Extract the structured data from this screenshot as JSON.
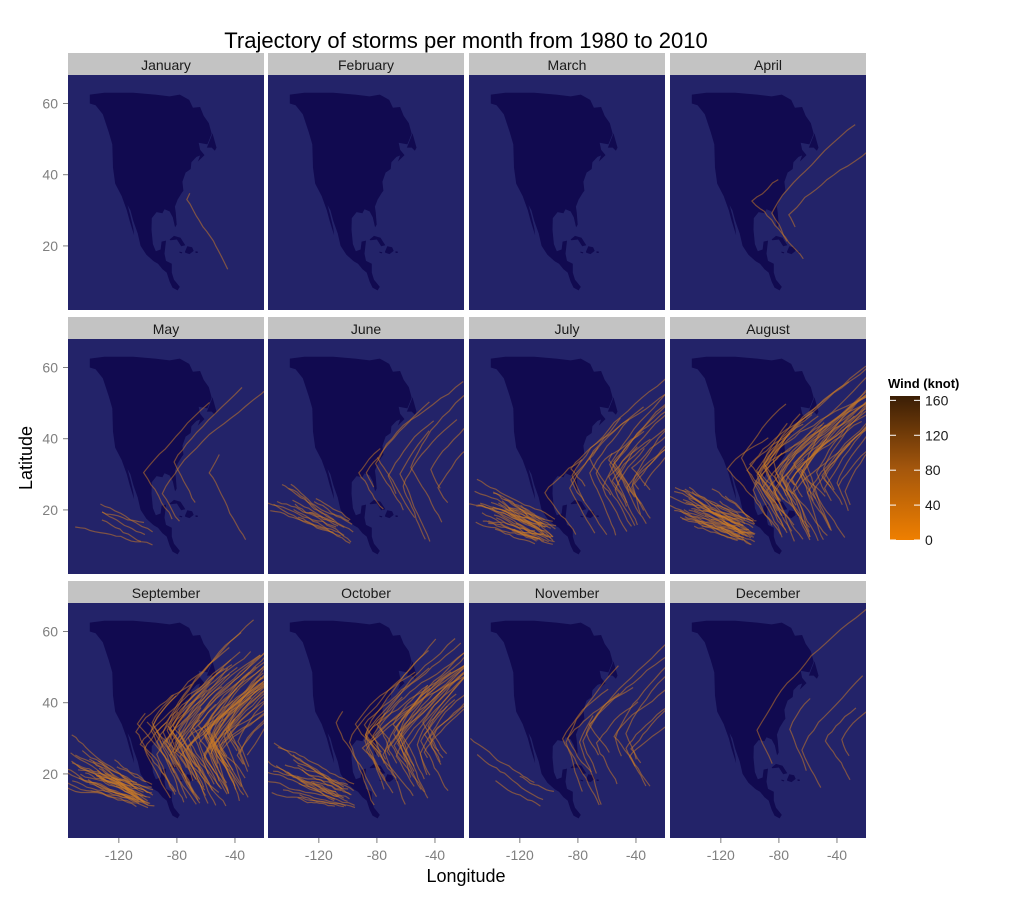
{
  "chart_data": {
    "type": "map-trajectories",
    "title": "Trajectory of storms per month from 1980 to 2010",
    "xlabel": "Longitude",
    "ylabel": "Latitude",
    "x_ticks": [
      -120,
      -80,
      -40
    ],
    "y_ticks": [
      20,
      40,
      60
    ],
    "xlim": [
      -155,
      -20
    ],
    "ylim": [
      2,
      68
    ],
    "colors": {
      "ocean": "#232369",
      "land": "#110a50",
      "strip": "#c3c3c3",
      "track": "#c87a28",
      "wind_high": "#3a1e05",
      "wind_low": "#ef7f00"
    },
    "legend": {
      "title": "Wind (knot)",
      "ticks": [
        160,
        120,
        80,
        40,
        0
      ],
      "range": [
        0,
        165
      ]
    },
    "panels": [
      {
        "month": "January",
        "storm_count": 1,
        "pacific_tracks": 0,
        "atlantic_tracks": 1
      },
      {
        "month": "February",
        "storm_count": 0,
        "pacific_tracks": 0,
        "atlantic_tracks": 0
      },
      {
        "month": "March",
        "storm_count": 0,
        "pacific_tracks": 0,
        "atlantic_tracks": 0
      },
      {
        "month": "April",
        "storm_count": 3,
        "pacific_tracks": 0,
        "atlantic_tracks": 3
      },
      {
        "month": "May",
        "storm_count": 7,
        "pacific_tracks": 5,
        "atlantic_tracks": 4
      },
      {
        "month": "June",
        "storm_count": 22,
        "pacific_tracks": 14,
        "atlantic_tracks": 10
      },
      {
        "month": "July",
        "storm_count": 60,
        "pacific_tracks": 34,
        "atlantic_tracks": 24
      },
      {
        "month": "August",
        "storm_count": 95,
        "pacific_tracks": 40,
        "atlantic_tracks": 50
      },
      {
        "month": "September",
        "storm_count": 110,
        "pacific_tracks": 36,
        "atlantic_tracks": 70
      },
      {
        "month": "October",
        "storm_count": 60,
        "pacific_tracks": 22,
        "atlantic_tracks": 36
      },
      {
        "month": "November",
        "storm_count": 20,
        "pacific_tracks": 4,
        "atlantic_tracks": 14
      },
      {
        "month": "December",
        "storm_count": 5,
        "pacific_tracks": 0,
        "atlantic_tracks": 5
      }
    ]
  }
}
